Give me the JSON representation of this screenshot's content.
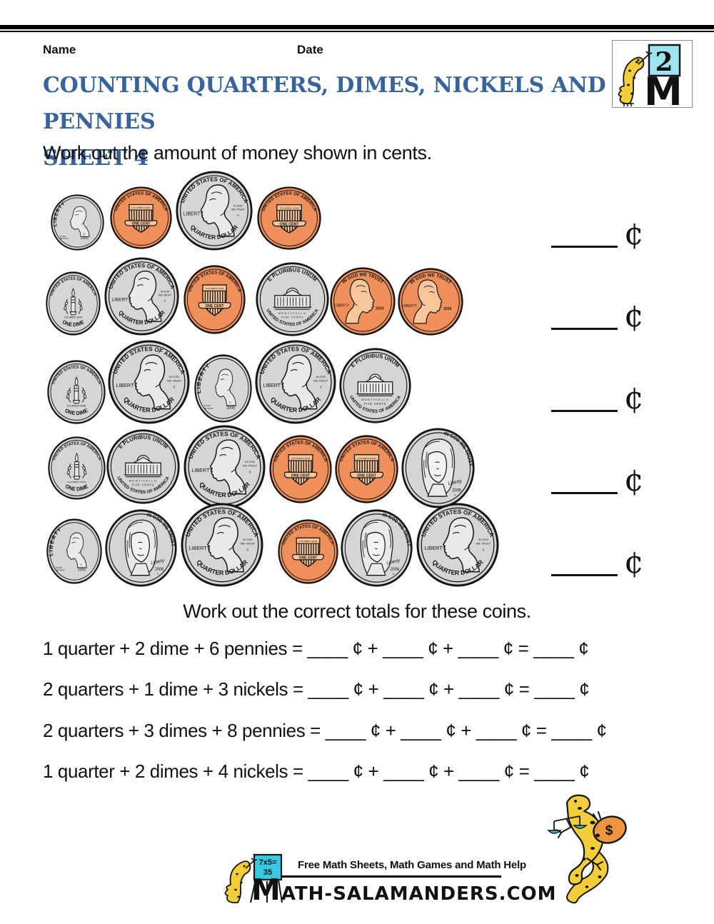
{
  "header": {
    "name_label": "Name",
    "date_label": "Date"
  },
  "logo": {
    "grade": "2",
    "letter": "M"
  },
  "title": {
    "line1": "COUNTING QUARTERS, DIMES, NICKELS AND PENNIES",
    "line2": "SHEET 4"
  },
  "instructions": {
    "coins": "Work out the amount of money shown in cents.",
    "totals": "Work out the correct totals for these coins."
  },
  "answers": {
    "cent": "¢",
    "count": 5
  },
  "coin_rows": [
    [
      "dime-obverse",
      "penny-shield",
      "quarter",
      "penny-shield"
    ],
    [
      "dime-reverse",
      "quarter",
      "penny-shield",
      "nickel-reverse",
      "penny-obverse",
      "penny-obverse"
    ],
    [
      "dime-reverse",
      "quarter",
      "dime-obverse",
      "quarter",
      "nickel-reverse"
    ],
    [
      "dime-reverse",
      "nickel-reverse",
      "quarter",
      "penny-shield",
      "penny-shield",
      "nickel-obverse"
    ],
    [
      "dime-obverse",
      "nickel-obverse",
      "quarter",
      "penny-shield",
      "nickel-obverse",
      "quarter"
    ]
  ],
  "coin_labels": {
    "quarter": {
      "top": "UNITED STATES OF AMERICA",
      "bottom": "QUARTER DOLLAR",
      "liberty": "LIBERTY",
      "motto1": "IN GOD",
      "motto2": "WE TRUST",
      "mint": "S"
    },
    "dime-obverse": {
      "liberty": "LIBERTY",
      "motto1": "IN GOD",
      "motto2": "WE TRUST",
      "year": "2005",
      "mint": "D"
    },
    "dime-reverse": {
      "top": "UNITED STATES OF AMERICA",
      "middle": "·E PLURIBUS UNUM·",
      "bottom": "ONE DIME"
    },
    "penny-shield": {
      "top": "UNITED STATES OF AMERICA",
      "shield": "E PLURIBUS UNUM",
      "banner": "ONE CENT"
    },
    "penny-obverse": {
      "top": "IN GOD WE TRUST",
      "liberty": "LIBERTY",
      "year": "2010"
    },
    "nickel-reverse": {
      "top": "E PLURIBUS UNUM",
      "building": "MONTICELLO",
      "value": "FIVE CENTS",
      "bottom": "UNITED STATES OF AMERICA"
    },
    "nickel-obverse": {
      "top": "IN GOD WE TRUST",
      "liberty": "Liberty",
      "year": "2006",
      "mint": "S"
    }
  },
  "problems": [
    "1 quarter + 2 dime + 6 pennies = ____ ¢ + ____ ¢ + ____ ¢ = ____ ¢",
    "2 quarters + 1 dime + 3 nickels = ____ ¢ + ____ ¢ + ____ ¢ = ____ ¢",
    "2 quarters + 3 dimes + 8 pennies = ____ ¢ + ____ ¢ + ____ ¢ = ____ ¢",
    "1 quarter + 2 dimes + 4 nickels = ____ ¢ + ____ ¢ + ____ ¢ = ____ ¢"
  ],
  "footer": {
    "board_line1": "7x5=",
    "board_line2": "35",
    "tagline": "Free Math Sheets, Math Games and Math Help",
    "site_m": "M",
    "site_rest": "ATH-SALAMANDERS.COM"
  },
  "money_salamander": {
    "bag": "$"
  },
  "colors": {
    "title_blue": "#38649b",
    "coin_silver": "#d5d5d5",
    "coin_copper": "#ef8f59",
    "coin_copper_light": "#f7c79b",
    "mascot_yellow": "#f2cf3a",
    "mascot_cyan": "#37c9e2",
    "bag_orange": "#ef9540"
  }
}
